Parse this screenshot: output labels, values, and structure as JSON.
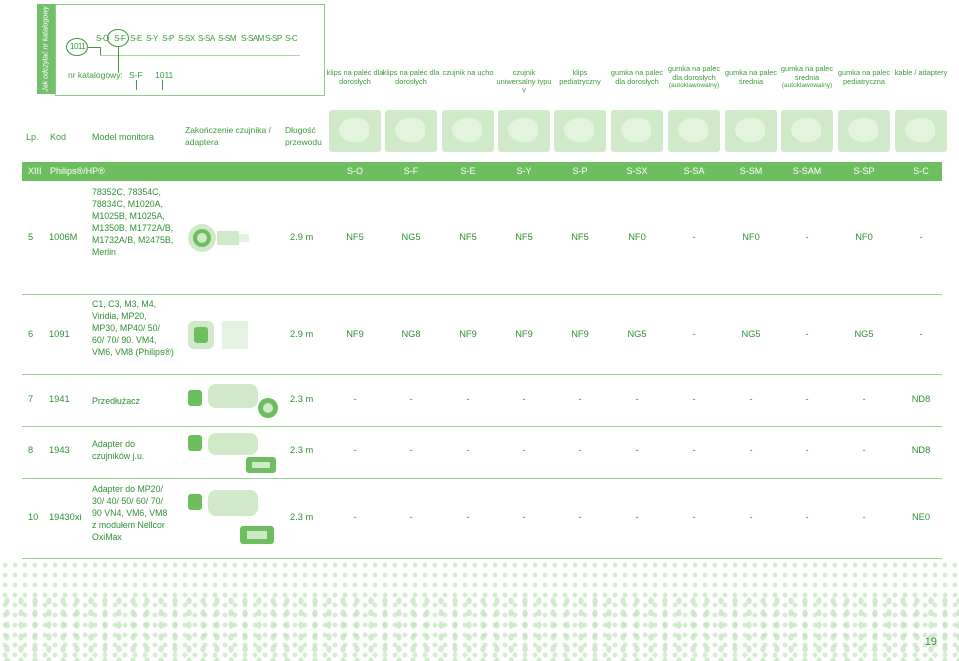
{
  "side_tab": "Jak odczytać nr katalogowy",
  "legend": {
    "codes": [
      "S-O",
      "S-F",
      "S-E",
      "S-Y",
      "S-P",
      "S-SX",
      "S-SA",
      "S-SM",
      "S-SAM",
      "S-SP",
      "S-C"
    ],
    "example_number": "1011",
    "catalog_label": "nr katalogowy:",
    "example_code": "S-F",
    "example_number2": "1011"
  },
  "headers": {
    "lp": "Lp.",
    "kod": "Kod",
    "model": "Model monitora",
    "zakonczenie": "Zakończenie czujnika / adaptera",
    "dlugosc": "Długość przewodu",
    "columns": [
      {
        "label": "klips na palec dla dorosłych",
        "note": ""
      },
      {
        "label": "klips na palec dla dorosłych",
        "note": ""
      },
      {
        "label": "czujnik na ucho",
        "note": ""
      },
      {
        "label": "czujnik uniwersalny typu Y",
        "note": ""
      },
      {
        "label": "klips pediatryczny",
        "note": ""
      },
      {
        "label": "gumka na palec dla dorosłych",
        "note": ""
      },
      {
        "label": "gumka na palec dla dorosłych",
        "note": "(autoklawowalny)"
      },
      {
        "label": "gumka na palec średnia",
        "note": ""
      },
      {
        "label": "gumka na palec średnia",
        "note": "(autoklawowalny)"
      },
      {
        "label": "gumka na palec pediatryczna",
        "note": ""
      },
      {
        "label": "kable / adaptery",
        "note": ""
      }
    ]
  },
  "group": {
    "num": "XIII",
    "name": "Philips®/HP®",
    "codes": [
      "S-O",
      "S-F",
      "S-E",
      "S-Y",
      "S-P",
      "S-SX",
      "S-SA",
      "S-SM",
      "S-SAM",
      "S-SP",
      "S-C"
    ]
  },
  "rows": [
    {
      "lp": "5",
      "kod": "1006M",
      "model": "78352C, 78354C, 78834C, M1020A, M1025B, M1025A, M1350B, M1772A/B, M1732A/B, M2475B, Merlin",
      "length": "2.9 m",
      "values": [
        "NF5",
        "NG5",
        "NF5",
        "NF5",
        "NF5",
        "NF0",
        "-",
        "NF0",
        "-",
        "NF0",
        "-"
      ]
    },
    {
      "lp": "6",
      "kod": "1091",
      "model": "C1, C3, M3, M4, Viridia, MP20, MP30, MP40/ 50/ 60/ 70/ 90. VM4, VM6, VM8 (Philips®)",
      "length": "2.9 m",
      "values": [
        "NF9",
        "NG8",
        "NF9",
        "NF9",
        "NF9",
        "NG5",
        "-",
        "NG5",
        "-",
        "NG5",
        "-"
      ]
    },
    {
      "lp": "7",
      "kod": "1941",
      "model": "Przedłużacz",
      "length": "2.3 m",
      "values": [
        "-",
        "-",
        "-",
        "-",
        "-",
        "-",
        "-",
        "-",
        "-",
        "-",
        "ND8"
      ]
    },
    {
      "lp": "8",
      "kod": "1943",
      "model": "Adapter do czujników j.u.",
      "length": "2.3 m",
      "values": [
        "-",
        "-",
        "-",
        "-",
        "-",
        "-",
        "-",
        "-",
        "-",
        "-",
        "ND8"
      ]
    },
    {
      "lp": "10",
      "kod": "19430xi",
      "model": "Adapter do MP20/ 30/ 40/ 50/ 60/ 70/ 90 VN4, VM6, VM8 z modułem Nellcor OxiMax",
      "length": "2.3 m",
      "values": [
        "-",
        "-",
        "-",
        "-",
        "-",
        "-",
        "-",
        "-",
        "-",
        "-",
        "NE0"
      ]
    }
  ],
  "page_number": "19",
  "colors": {
    "green": "#3d9a3d",
    "band": "#6dbe5f",
    "line": "#9dd096"
  }
}
